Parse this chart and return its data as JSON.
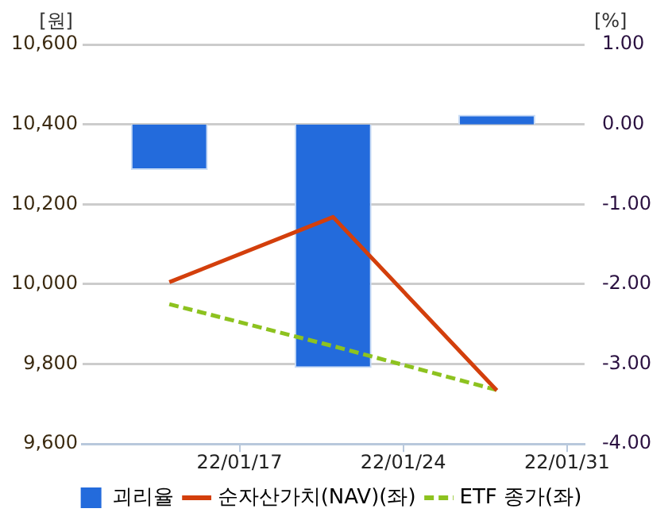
{
  "chart_data": {
    "type": "bar",
    "ylabel": "[원]",
    "y2label": "[%]",
    "x": [
      "--01-14",
      "--01-21",
      "--01-28"
    ],
    "series": [
      {
        "name": "괴리율",
        "axis": "y2",
        "color": "#236bdc",
        "values": [
          -0.57,
          -3.05,
          0.12
        ]
      },
      {
        "name": "순자산가치(NAV)(좌)",
        "type": "line",
        "color": "#d33f0c",
        "line_style": "solid",
        "values": [
          10005,
          10168,
          9734
        ]
      },
      {
        "name": "ETF 종가(좌)",
        "type": "line",
        "color": "#8dc21f",
        "line_style": "dashed",
        "values": [
          9950,
          9845,
          9735
        ]
      }
    ],
    "xlim": [
      "--01-10T07:00",
      "--01-31T18:00"
    ],
    "xticks": [
      {
        "value": "--01-17",
        "label": "22/01/17"
      },
      {
        "value": "--01-24",
        "label": "22/01/24"
      },
      {
        "value": "--01-31",
        "label": "22/01/31"
      }
    ],
    "ylim": [
      9600,
      10600
    ],
    "yticks": [
      {
        "value": 9600,
        "label": "9,600"
      },
      {
        "value": 9800,
        "label": "9,800"
      },
      {
        "value": 10000,
        "label": "10,000"
      },
      {
        "value": 10200,
        "label": "10,200"
      },
      {
        "value": 10400,
        "label": "10,400"
      },
      {
        "value": 10600,
        "label": "10,600"
      }
    ],
    "y2lim": [
      -4,
      1
    ],
    "y2ticks": [
      {
        "value": -4,
        "label": "-4.00"
      },
      {
        "value": -3,
        "label": "-3.00"
      },
      {
        "value": -2,
        "label": "-2.00"
      },
      {
        "value": -1,
        "label": "-1.00"
      },
      {
        "value": 0,
        "label": "0.00"
      },
      {
        "value": 1,
        "label": "1.00"
      }
    ],
    "grid": "y",
    "legend": "bottom",
    "marker": "none"
  }
}
